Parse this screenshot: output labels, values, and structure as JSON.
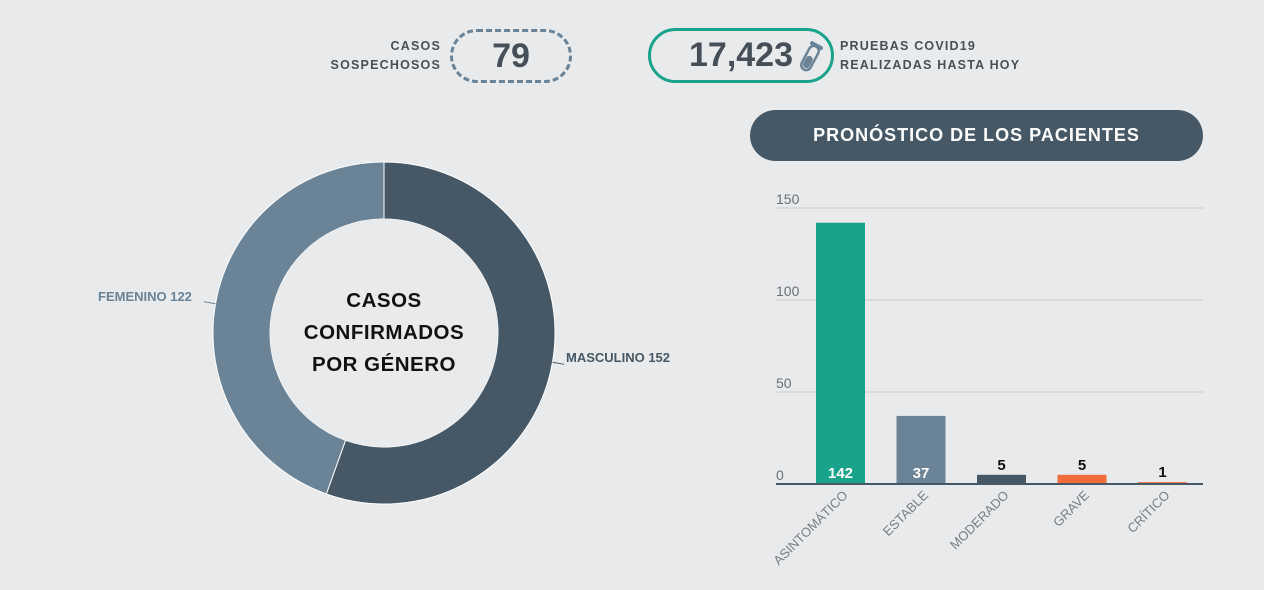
{
  "stats": {
    "suspected": {
      "label_line1": "CASOS",
      "label_line2": "SOSPECHOSOS",
      "value": "79"
    },
    "tests": {
      "value": "17,423",
      "label_line1": "PRUEBAS COVID19",
      "label_line2": "REALIZADAS HASTA HOY",
      "icon": "test-tube-icon"
    }
  },
  "donut": {
    "center_line1": "CASOS",
    "center_line2": "CONFIRMADOS",
    "center_line3": "POR GÉNERO",
    "femenino_label": "FEMENINO 122",
    "masculino_label": "MASCULINO 152"
  },
  "bar_header": "PRONÓSTICO DE LOS PACIENTES",
  "chart_data": [
    {
      "type": "pie",
      "title": "CASOS CONFIRMADOS POR GÉNERO",
      "categories": [
        "MASCULINO",
        "FEMENINO"
      ],
      "values": [
        152,
        122
      ],
      "colors": [
        "#465866",
        "#6a8396"
      ]
    },
    {
      "type": "bar",
      "title": "PRONÓSTICO DE LOS PACIENTES",
      "categories": [
        "ASINTOMÁTICO",
        "ESTABLE",
        "MODERADO",
        "GRAVE",
        "CRÍTICO"
      ],
      "values": [
        142,
        37,
        5,
        5,
        1
      ],
      "data_labels": [
        "142",
        "37",
        "5",
        "5",
        "1"
      ],
      "colors": [
        "#1aa38b",
        "#6a8396",
        "#465866",
        "#f26b3a",
        "#f26b3a"
      ],
      "yticks": [
        0,
        50,
        100,
        150
      ],
      "ylim": [
        0,
        150
      ],
      "grid": true
    }
  ]
}
